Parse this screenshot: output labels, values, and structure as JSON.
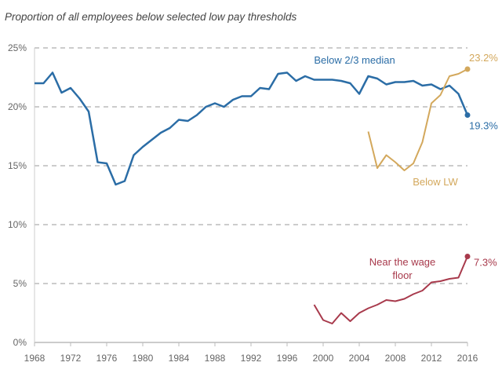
{
  "chart_data": {
    "type": "line",
    "title": "Proportion of all employees below selected low pay thresholds",
    "xlabel": "",
    "ylabel": "",
    "xlim": [
      1968,
      2016
    ],
    "ylim": [
      0,
      25
    ],
    "x_ticks": [
      "1968",
      "1972",
      "1976",
      "1980",
      "1984",
      "1988",
      "1992",
      "1996",
      "2000",
      "2004",
      "2008",
      "2012",
      "2016"
    ],
    "y_ticks": [
      "0%",
      "5%",
      "10%",
      "15%",
      "20%",
      "25%"
    ],
    "grid": "horizontal dashed",
    "series": [
      {
        "name": "Below 2/3 median",
        "color": "#2b6da6",
        "end_label": "19.3%",
        "x": [
          1968,
          1969,
          1970,
          1971,
          1972,
          1973,
          1974,
          1975,
          1976,
          1977,
          1978,
          1979,
          1980,
          1981,
          1982,
          1983,
          1984,
          1985,
          1986,
          1987,
          1988,
          1989,
          1990,
          1991,
          1992,
          1993,
          1994,
          1995,
          1996,
          1997,
          1998,
          1999,
          2000,
          2001,
          2002,
          2003,
          2004,
          2005,
          2006,
          2007,
          2008,
          2009,
          2010,
          2011,
          2012,
          2013,
          2014,
          2015,
          2016
        ],
        "y": [
          22.0,
          22.0,
          22.9,
          21.2,
          21.6,
          20.7,
          19.6,
          15.3,
          15.2,
          13.4,
          13.7,
          15.9,
          16.6,
          17.2,
          17.8,
          18.2,
          18.9,
          18.8,
          19.3,
          20.0,
          20.3,
          20.0,
          20.6,
          20.9,
          20.9,
          21.6,
          21.5,
          22.8,
          22.9,
          22.2,
          22.6,
          22.3,
          22.3,
          22.3,
          22.2,
          22.0,
          21.1,
          22.6,
          22.4,
          21.9,
          22.1,
          22.1,
          22.2,
          21.8,
          21.9,
          21.5,
          21.8,
          21.1,
          19.3
        ]
      },
      {
        "name": "Below LW",
        "color": "#d3a85c",
        "end_label": "23.2%",
        "x": [
          2005,
          2006,
          2007,
          2008,
          2009,
          2010,
          2011,
          2012,
          2013,
          2014,
          2015,
          2016
        ],
        "y": [
          17.9,
          14.8,
          15.9,
          15.3,
          14.6,
          15.2,
          17.0,
          20.3,
          21.0,
          22.6,
          22.8,
          23.2
        ]
      },
      {
        "name": "Near the wage floor",
        "color": "#a83a4c",
        "end_label": "7.3%",
        "x": [
          1999,
          2000,
          2001,
          2002,
          2003,
          2004,
          2005,
          2006,
          2007,
          2008,
          2009,
          2010,
          2011,
          2012,
          2013,
          2014,
          2015,
          2016
        ],
        "y": [
          3.2,
          1.9,
          1.6,
          2.5,
          1.8,
          2.5,
          2.9,
          3.2,
          3.6,
          3.5,
          3.7,
          4.1,
          4.4,
          5.1,
          5.2,
          5.4,
          5.5,
          7.3
        ]
      }
    ],
    "annotations": [
      "Below 2/3 median",
      "Below LW",
      "Near the wage",
      "floor"
    ]
  }
}
